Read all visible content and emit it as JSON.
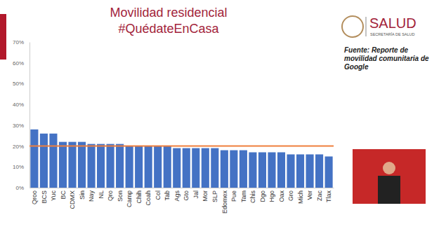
{
  "logo": {
    "name": "SALUD",
    "subtitle": "SECRETARÍA DE SALUD"
  },
  "chart_data": {
    "type": "bar",
    "title": "Movilidad residencial",
    "subtitle": "#QuédateEnCasa",
    "source": "Fuente: Reporte de movilidad comunitaria de Google",
    "categories": [
      "Qroo",
      "BCS",
      "Yuc",
      "BC",
      "CDMX",
      "Sin",
      "Nay",
      "NL",
      "Qro",
      "Son",
      "Camp",
      "Chih",
      "Coah",
      "Col",
      "Tab",
      "Ags",
      "Gto",
      "Jal",
      "Mor",
      "SLP",
      "Edomex",
      "Pue",
      "Tam",
      "Chis",
      "Dgo",
      "Hgo",
      "Oax",
      "Gro",
      "Mich",
      "Ver",
      "Zac",
      "Tlax"
    ],
    "values": [
      28,
      26,
      26,
      22,
      22,
      22,
      21,
      21,
      21,
      21,
      20,
      20,
      20,
      20,
      20,
      19,
      19,
      19,
      19,
      19,
      18,
      18,
      18,
      17,
      17,
      17,
      17,
      16,
      16,
      16,
      16,
      15
    ],
    "color": "#4472c4",
    "reference_line": {
      "value": 20,
      "color": "#f07f3c"
    },
    "ylim": [
      0,
      70
    ],
    "yticks": [
      {
        "value": 0,
        "label": "0%"
      },
      {
        "value": 10,
        "label": "10%"
      },
      {
        "value": 20,
        "label": "20%"
      },
      {
        "value": 30,
        "label": "30%"
      },
      {
        "value": 40,
        "label": "40%"
      },
      {
        "value": 50,
        "label": "50%"
      },
      {
        "value": 60,
        "label": "60%"
      },
      {
        "value": 70,
        "label": "70%"
      }
    ],
    "grid": false
  }
}
